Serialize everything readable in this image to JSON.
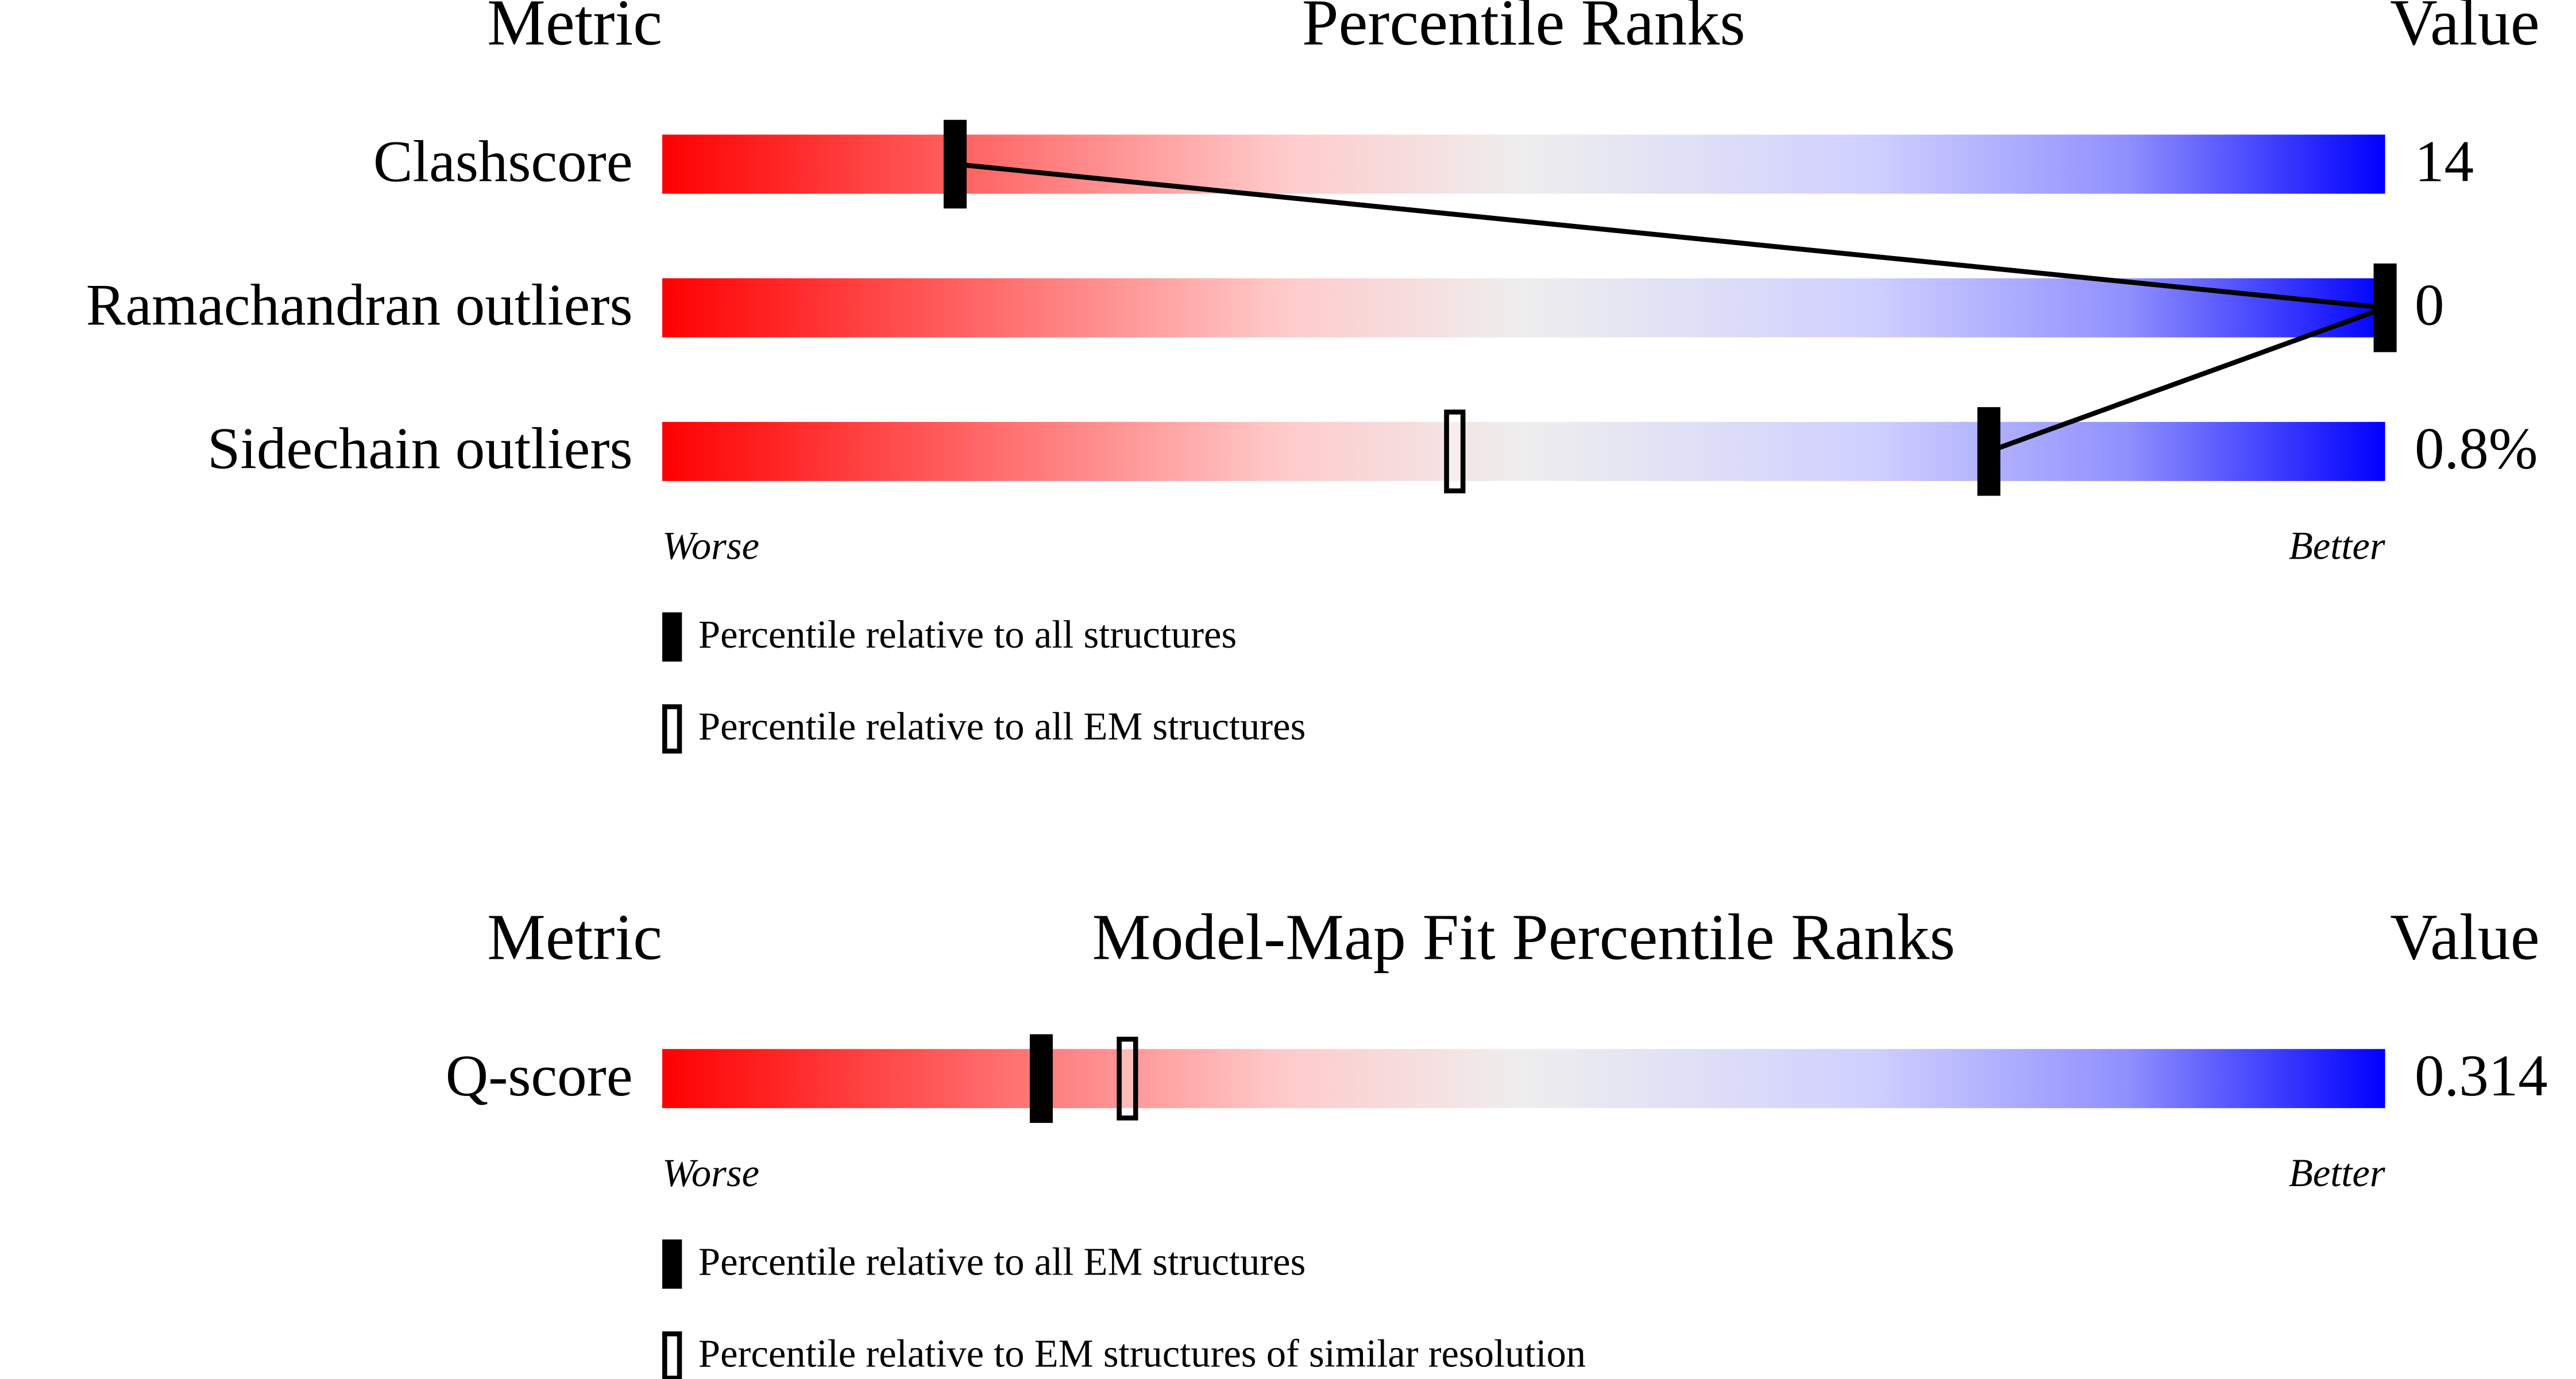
{
  "chart_data": [
    {
      "type": "percentile",
      "metric_header": "Metric",
      "title": "Percentile Ranks",
      "value_header": "Value",
      "categories": [
        "Clashscore",
        "Ramachandran outliers",
        "Sidechain outliers"
      ],
      "values": [
        14,
        0,
        0.8
      ],
      "value_labels": [
        "14",
        "0",
        "0.8%"
      ],
      "xlim": [
        0,
        100
      ],
      "worse_label": "Worse",
      "better_label": "Better",
      "series": [
        {
          "name": "Percentile relative to all structures",
          "marker": "filled",
          "values": [
            17,
            100,
            77
          ]
        },
        {
          "name": "Percentile relative to all EM structures",
          "marker": "open",
          "values": [
            null,
            null,
            46
          ]
        }
      ]
    },
    {
      "type": "percentile",
      "metric_header": "Metric",
      "title": "Model-Map Fit Percentile Ranks",
      "value_header": "Value",
      "categories": [
        "Q-score"
      ],
      "values": [
        0.314
      ],
      "value_labels": [
        "0.314"
      ],
      "xlim": [
        0,
        100
      ],
      "worse_label": "Worse",
      "better_label": "Better",
      "series": [
        {
          "name": "Percentile relative to all EM structures",
          "marker": "filled",
          "values": [
            22
          ]
        },
        {
          "name": "Percentile relative to EM structures of similar resolution",
          "marker": "open",
          "values": [
            27
          ]
        }
      ]
    }
  ]
}
